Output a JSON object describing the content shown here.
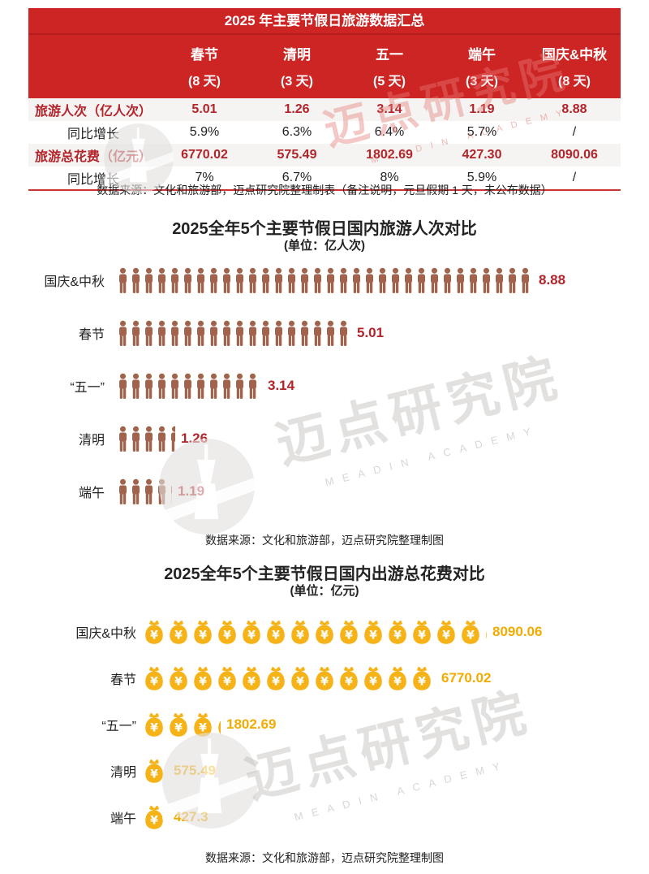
{
  "colors": {
    "table_red": "#cd2424",
    "value_red": "#b2242a",
    "person_brown": "#a2634c",
    "bag_gold": "#f6b318",
    "bag_value_gold": "#f2ab00",
    "text": "#222222"
  },
  "summary_table": {
    "title": "2025 年主要节假日旅游数据汇总",
    "columns": [
      {
        "name": "春节",
        "days": "(8 天)"
      },
      {
        "name": "清明",
        "days": "(3 天)"
      },
      {
        "name": "五一",
        "days": "(5 天)"
      },
      {
        "name": "端午",
        "days": "(3 天)"
      },
      {
        "name": "国庆&中秋",
        "days": "(8 天)"
      }
    ],
    "rows": [
      {
        "label": "旅游人次（亿人次）",
        "style": "red",
        "values": [
          "5.01",
          "1.26",
          "3.14",
          "1.19",
          "8.88"
        ]
      },
      {
        "label": "同比增长",
        "style": "plain",
        "values": [
          "5.9%",
          "6.3%",
          "6.4%",
          "5.7%",
          "/"
        ]
      },
      {
        "label": "旅游总花费（亿元）",
        "style": "red",
        "values": [
          "6770.02",
          "575.49",
          "1802.69",
          "427.30",
          "8090.06"
        ]
      },
      {
        "label": "同比增长",
        "style": "plain",
        "values": [
          "7%",
          "6.7%",
          "8%",
          "5.9%",
          "/"
        ]
      }
    ],
    "note": "数据来源：文化和旅游部，迈点研究院整理制表（备注说明，元旦假期 1 天，未公布数据）"
  },
  "chart_data": [
    {
      "type": "bar",
      "pictograph_icon": "person",
      "title": "2025全年5个主要节假日国内旅游人次对比",
      "subtitle": "(单位：亿人次)",
      "ylabel": "亿人次",
      "categories": [
        "国庆&中秋",
        "春节",
        "“五一”",
        "清明",
        "端午"
      ],
      "values": [
        8.88,
        5.01,
        3.14,
        1.26,
        1.19
      ],
      "value_labels": [
        "8.88",
        "5.01",
        "3.14",
        "1.26",
        "1.19"
      ],
      "icon_unit_value": 0.2775,
      "icons": [
        {
          "full": 32,
          "partial": 0
        },
        {
          "full": 18,
          "partial": 0
        },
        {
          "full": 11,
          "partial": 0.15
        },
        {
          "full": 4,
          "partial": 0.5
        },
        {
          "full": 4,
          "partial": 0.22
        }
      ],
      "source": "数据来源：文化和旅游部，迈点研究院整理制图"
    },
    {
      "type": "bar",
      "pictograph_icon": "money-bag",
      "title": "2025全年5个主要节假日国内出游总花费对比",
      "subtitle": "(单位：亿元)",
      "ylabel": "亿元",
      "categories": [
        "国庆&中秋",
        "春节",
        "“五一”",
        "清明",
        "端午"
      ],
      "values": [
        8090.06,
        6770.02,
        1802.69,
        575.49,
        427.3
      ],
      "value_labels": [
        "8090.06",
        "6770.02",
        "1802.69",
        "575.49",
        "427.3"
      ],
      "icon_unit_value": 564,
      "icons": [
        {
          "full": 14,
          "partial": 0.12
        },
        {
          "full": 12,
          "partial": 0
        },
        {
          "full": 3,
          "partial": 0.18
        },
        {
          "full": 1,
          "partial": 0
        },
        {
          "full": 1,
          "partial": 0
        }
      ],
      "source": "数据来源：文化和旅游部，迈点研究院整理制图"
    }
  ],
  "watermark": {
    "text": "迈点研究院",
    "subtext": "MEADIN ACADEMY",
    "currency_symbol": "¥"
  }
}
